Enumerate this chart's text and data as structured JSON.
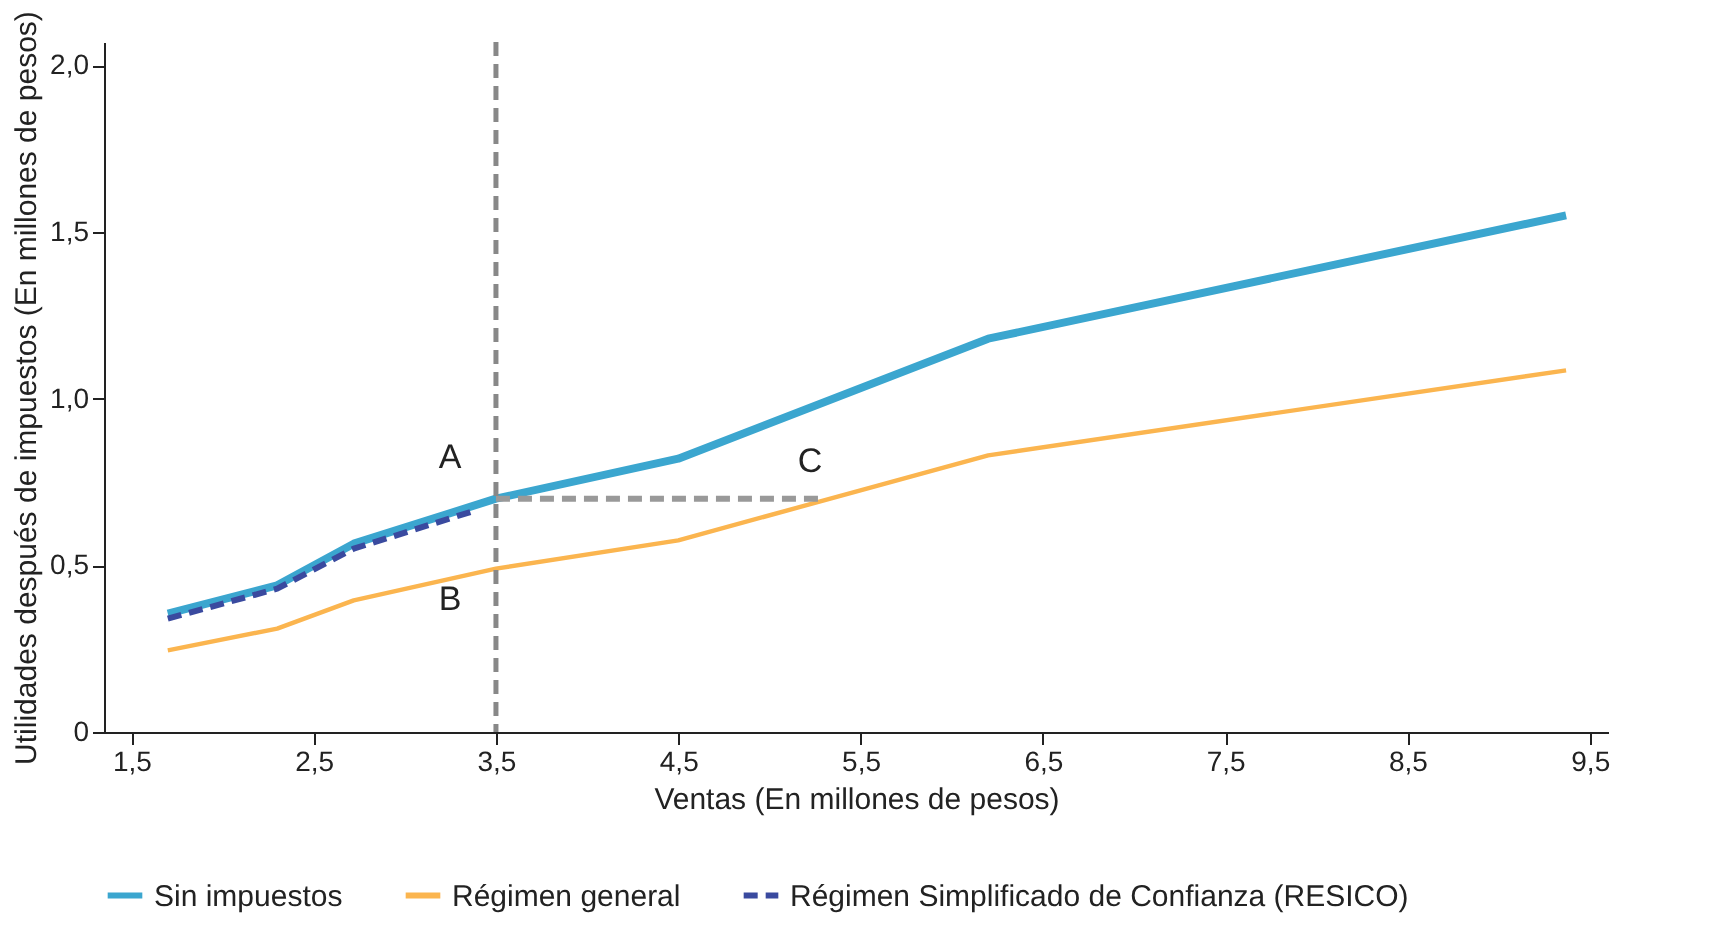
{
  "chart_data": {
    "type": "line",
    "xlabel": "Ventas (En millones de pesos)",
    "ylabel": "Utilidades después de impuestos (En millones de pesos)",
    "series": [
      {
        "name": "Sin impuestos",
        "color": "#3ba6cf",
        "line_style": "solid",
        "x": [
          1.7,
          2.3,
          2.72,
          3.5,
          4.5,
          6.2,
          9.37
        ],
        "values": [
          0.355,
          0.44,
          0.565,
          0.7,
          0.82,
          1.18,
          1.55
        ]
      },
      {
        "name": "Régimen general",
        "color": "#fbb54f",
        "line_style": "solid",
        "x": [
          1.7,
          2.3,
          2.72,
          3.5,
          4.5,
          6.2,
          9.37
        ],
        "values": [
          0.245,
          0.31,
          0.395,
          0.49,
          0.575,
          0.83,
          1.085
        ]
      },
      {
        "name": "Régimen Simplificado de Confianza (RESICO)",
        "color": "#3a4a9f",
        "line_style": "dashed",
        "x": [
          1.7,
          2.3,
          2.72,
          3.36
        ],
        "values": [
          0.34,
          0.43,
          0.55,
          0.66
        ]
      },
      {
        "color": "#999999",
        "line_style": "dashed",
        "x": [
          3.5,
          5.27
        ],
        "values": [
          0.7,
          0.7
        ]
      }
    ],
    "ref_lines": [
      {
        "axis": "x",
        "value": 3.5,
        "color": "#888888",
        "line_style": "dashed"
      }
    ],
    "annotations": [
      "A",
      "B",
      "C"
    ],
    "xlim": [
      1.35,
      9.6
    ],
    "xticks": [
      {
        "value": 1.5,
        "label": "1,5"
      },
      {
        "value": 2.5,
        "label": "2,5"
      },
      {
        "value": 3.5,
        "label": "3,5"
      },
      {
        "value": 4.5,
        "label": "4,5"
      },
      {
        "value": 5.5,
        "label": "5,5"
      },
      {
        "value": 6.5,
        "label": "6,5"
      },
      {
        "value": 7.5,
        "label": "7,5"
      },
      {
        "value": 8.5,
        "label": "8,5"
      },
      {
        "value": 9.5,
        "label": "9,5"
      }
    ],
    "ylim": [
      0,
      2.07
    ],
    "yticks": [
      0,
      {
        "value": 0.5,
        "label": "0,5"
      },
      {
        "value": 1,
        "label": "1,0"
      },
      {
        "value": 1.5,
        "label": "1,5"
      },
      {
        "value": 2,
        "label": "2,0"
      }
    ],
    "grid": false,
    "legend": "bottom"
  }
}
